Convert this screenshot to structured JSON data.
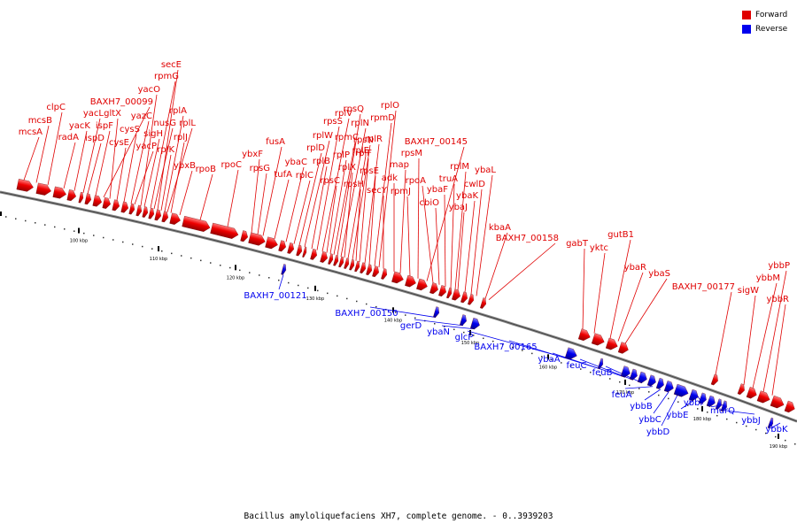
{
  "legend": {
    "forward_label": "Forward",
    "reverse_label": "Reverse",
    "forward_color": "#e00000",
    "reverse_color": "#0000ee"
  },
  "caption": "Bacillus amyloliquefaciens XH7, complete genome. - 0..3939203",
  "ticks": [
    "100 kbp",
    "110 kbp",
    "120 kbp",
    "130 kbp",
    "140 kbp",
    "150 kbp",
    "160 kbp",
    "170 kbp",
    "180 kbp",
    "190 kbp"
  ],
  "forward_genes": [
    "mcsA",
    "mcsB",
    "clpC",
    "radA",
    "yacK",
    "yacL",
    "ispD",
    "ispF",
    "BAXH7_00099",
    "gltX",
    "cysE",
    "cysS",
    "yazC",
    "yacO",
    "yacP",
    "sigH",
    "nusG",
    "rpmG",
    "secE",
    "rplK",
    "rplA",
    "rplL",
    "rplJ",
    "ybxB",
    "rpoB",
    "rpoC",
    "ybxF",
    "rpsG",
    "fusA",
    "tufA",
    "ybaC",
    "rplC",
    "rplD",
    "rplW",
    "rplB",
    "rpsS",
    "rplV",
    "rpsC",
    "rplP",
    "rpmC",
    "rpsQ",
    "rplN",
    "rplX",
    "rplE",
    "rpsN",
    "rpsH",
    "rplF",
    "rplR",
    "rpsE",
    "rpmD",
    "rplO",
    "secY",
    "adk",
    "map",
    "rpmJ",
    "rpsM",
    "BAXH7_00145",
    "rpoA",
    "cbiO",
    "ybaF",
    "truA",
    "rplM",
    "ybaJ",
    "ybaK",
    "cwlD",
    "ybaL",
    "kbaA",
    "BAXH7_00158",
    "gabT",
    "yktc",
    "gutB1",
    "ybaR",
    "ybaS",
    "BAXH7_00177",
    "sigW",
    "ybbM",
    "ybbP",
    "ybbR"
  ],
  "reverse_genes": [
    "BAXH7_00121",
    "BAXH7_00150",
    "gerD",
    "ybaN",
    "glcP",
    "BAXH7_00165",
    "ybaA",
    "feuC",
    "feuB",
    "feuA",
    "ybbB",
    "ybbC",
    "ybbD",
    "ybbE",
    "ybbF",
    "murQ",
    "ybbJ",
    "ybbK"
  ]
}
